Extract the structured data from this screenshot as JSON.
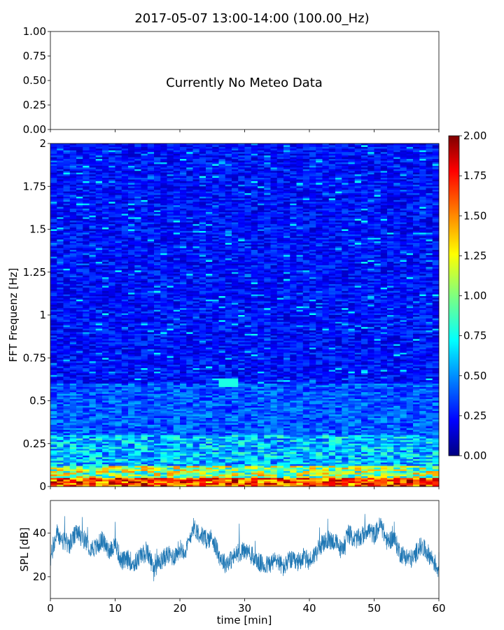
{
  "title": "2017-05-07 13:00-14:00 (100.00_Hz)",
  "chart_data": [
    {
      "type": "line",
      "panel": "meteo",
      "annotation": "Currently No Meteo Data",
      "xlim": [
        0,
        60
      ],
      "ylim": [
        0,
        1
      ],
      "yticks": [
        "1.00",
        "0.75",
        "0.50",
        "0.25",
        "0.00"
      ],
      "ytick_values": [
        1.0,
        0.75,
        0.5,
        0.25,
        0.0
      ],
      "xtick_values": [
        0,
        10,
        20,
        30,
        40,
        50,
        60
      ],
      "show_xtick_labels": false,
      "series": []
    },
    {
      "type": "heatmap",
      "panel": "spectrogram",
      "ylabel": "FFT Frequenz [Hz]",
      "xlim": [
        0,
        60
      ],
      "ylim": [
        0,
        2
      ],
      "yticks": [
        "2",
        "1.75",
        "1.5",
        "1.25",
        "1",
        "0.75",
        "0.5",
        "0.25",
        "0"
      ],
      "ytick_values": [
        2,
        1.75,
        1.5,
        1.25,
        1,
        0.75,
        0.5,
        0.25,
        0
      ],
      "colormap": "jet",
      "colorbar": {
        "range": [
          0,
          2
        ],
        "ticks": [
          "2.00",
          "1.75",
          "1.50",
          "1.25",
          "1.00",
          "0.75",
          "0.50",
          "0.25",
          "0.00"
        ],
        "tick_values": [
          2.0,
          1.75,
          1.5,
          1.25,
          1.0,
          0.75,
          0.5,
          0.25,
          0.0
        ]
      },
      "value_profile": "values highest (~2.0) near 0-0.05 Hz, greens/cyans below 0.25 Hz, mostly blue (~0.2-0.4) above",
      "highlights": [
        {
          "t": [
            26,
            29
          ],
          "f": [
            0.58,
            0.63
          ],
          "level": 0.8
        }
      ]
    },
    {
      "type": "line",
      "panel": "spl",
      "ylabel": "SPL [dB]",
      "xlabel": "time [min]",
      "xlim": [
        0,
        60
      ],
      "ylim": [
        10,
        55
      ],
      "yticks": [
        "40",
        "20"
      ],
      "ytick_values": [
        40,
        20
      ],
      "xticks": [
        "0",
        "10",
        "20",
        "30",
        "40",
        "50",
        "60"
      ],
      "xtick_values": [
        0,
        10,
        20,
        30,
        40,
        50,
        60
      ],
      "line_color": "#1f77b4",
      "series": [
        {
          "x": [
            0,
            1,
            2,
            3,
            4,
            5,
            6,
            7,
            8,
            9,
            10,
            11,
            12,
            13,
            14,
            15,
            16,
            17,
            18,
            19,
            20,
            21,
            22,
            23,
            24,
            25,
            26,
            27,
            28,
            29,
            30,
            31,
            32,
            33,
            34,
            35,
            36,
            37,
            38,
            39,
            40,
            41,
            42,
            43,
            44,
            45,
            46,
            47,
            48,
            49,
            50,
            51,
            52,
            53,
            54,
            55,
            56,
            57,
            58,
            59,
            60
          ],
          "y": [
            28,
            40,
            36,
            35,
            40,
            38,
            34,
            33,
            37,
            32,
            35,
            27,
            28,
            26,
            30,
            31,
            24,
            27,
            30,
            29,
            33,
            32,
            43,
            40,
            37,
            38,
            30,
            26,
            28,
            31,
            32,
            30,
            27,
            25,
            26,
            28,
            24,
            28,
            26,
            29,
            27,
            31,
            35,
            37,
            36,
            32,
            40,
            37,
            38,
            42,
            39,
            44,
            36,
            38,
            31,
            29,
            28,
            34,
            32,
            28,
            23
          ]
        }
      ]
    }
  ]
}
